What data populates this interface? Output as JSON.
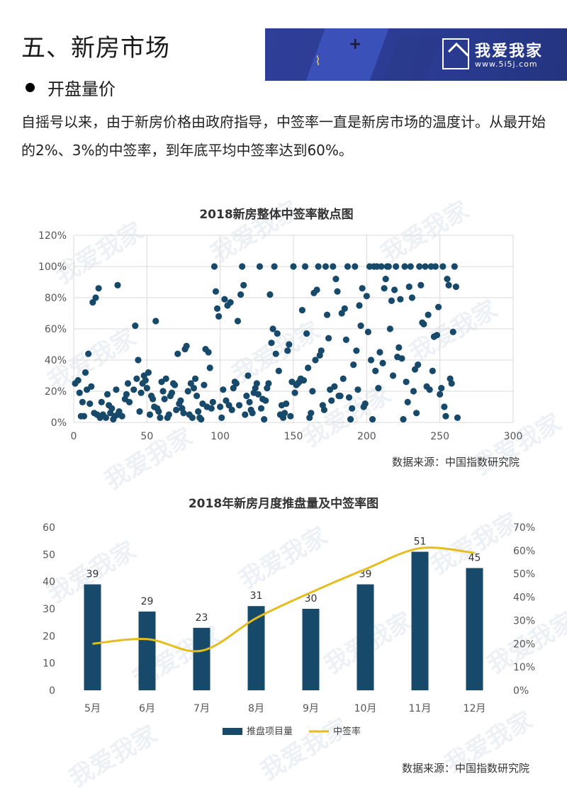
{
  "header": {
    "section_title": "五、新房市场",
    "bullet_title": "开盘量价",
    "paragraph": "自摇号以来，由于新房价格由政府指导，中签率一直是新房市场的温度计。从最开始的2%、3%的中签率，到年底平均中签率达到60%。"
  },
  "banner": {
    "brand": "我爱我家",
    "url": "www.5i5j.com",
    "colors": {
      "bg": "#2f3f99",
      "accent": "#e6c84a"
    }
  },
  "watermark_text": "我爱我家",
  "chart_data": [
    {
      "type": "scatter",
      "title": "2018新房整体中签率散点图",
      "xlim": [
        0,
        300
      ],
      "ylim": [
        0,
        120
      ],
      "xticks": [
        0,
        50,
        100,
        150,
        200,
        250,
        300
      ],
      "yticks": [
        "0%",
        "20%",
        "40%",
        "60%",
        "80%",
        "100%",
        "120%"
      ],
      "grid": true,
      "point_color": "#17496a",
      "points": [
        [
          1,
          25
        ],
        [
          3,
          27
        ],
        [
          4,
          19
        ],
        [
          5,
          4
        ],
        [
          6,
          13
        ],
        [
          7,
          4
        ],
        [
          8,
          32
        ],
        [
          9,
          21
        ],
        [
          10,
          44
        ],
        [
          11,
          12
        ],
        [
          12,
          23
        ],
        [
          13,
          77
        ],
        [
          14,
          6
        ],
        [
          15,
          80
        ],
        [
          16,
          5
        ],
        [
          17,
          86
        ],
        [
          18,
          3
        ],
        [
          19,
          13
        ],
        [
          20,
          5
        ],
        [
          22,
          3
        ],
        [
          23,
          18
        ],
        [
          24,
          11
        ],
        [
          25,
          6
        ],
        [
          26,
          9
        ],
        [
          27,
          2
        ],
        [
          28,
          4
        ],
        [
          29,
          21
        ],
        [
          30,
          5
        ],
        [
          31,
          7
        ],
        [
          33,
          4
        ],
        [
          35,
          15
        ],
        [
          36,
          18
        ],
        [
          37,
          25
        ],
        [
          38,
          13
        ],
        [
          30,
          88
        ],
        [
          41,
          21
        ],
        [
          42,
          62
        ],
        [
          43,
          28
        ],
        [
          44,
          40
        ],
        [
          45,
          7
        ],
        [
          46,
          19
        ],
        [
          47,
          25
        ],
        [
          48,
          30
        ],
        [
          49,
          27
        ],
        [
          50,
          22
        ],
        [
          51,
          32
        ],
        [
          52,
          5
        ],
        [
          53,
          17
        ],
        [
          54,
          15
        ],
        [
          55,
          10
        ],
        [
          56,
          65
        ],
        [
          57,
          9
        ],
        [
          58,
          7
        ],
        [
          59,
          3
        ],
        [
          60,
          26
        ],
        [
          61,
          20
        ],
        [
          62,
          15
        ],
        [
          63,
          28
        ],
        [
          64,
          3
        ],
        [
          65,
          5
        ],
        [
          66,
          17
        ],
        [
          67,
          19
        ],
        [
          68,
          25
        ],
        [
          69,
          24
        ],
        [
          70,
          8
        ],
        [
          71,
          44
        ],
        [
          72,
          12
        ],
        [
          73,
          14
        ],
        [
          74,
          9
        ],
        [
          75,
          6
        ],
        [
          76,
          47
        ],
        [
          77,
          49
        ],
        [
          78,
          20
        ],
        [
          79,
          5
        ],
        [
          80,
          25
        ],
        [
          81,
          3
        ],
        [
          82,
          22
        ],
        [
          83,
          28
        ],
        [
          84,
          17
        ],
        [
          85,
          7
        ],
        [
          86,
          3
        ],
        [
          87,
          2
        ],
        [
          88,
          12
        ],
        [
          89,
          24
        ],
        [
          90,
          47
        ],
        [
          91,
          10
        ],
        [
          92,
          45
        ],
        [
          93,
          35
        ],
        [
          94,
          9
        ],
        [
          95,
          13
        ],
        [
          96,
          100
        ],
        [
          97,
          84
        ],
        [
          98,
          73
        ],
        [
          99,
          68
        ],
        [
          100,
          10
        ],
        [
          101,
          3
        ],
        [
          102,
          21
        ],
        [
          103,
          79
        ],
        [
          104,
          14
        ],
        [
          105,
          75
        ],
        [
          106,
          11
        ],
        [
          107,
          77
        ],
        [
          108,
          8
        ],
        [
          109,
          22
        ],
        [
          110,
          26
        ],
        [
          111,
          25
        ],
        [
          112,
          65
        ],
        [
          113,
          11
        ],
        [
          114,
          82
        ],
        [
          115,
          100
        ],
        [
          116,
          88
        ],
        [
          117,
          5
        ],
        [
          118,
          17
        ],
        [
          119,
          30
        ],
        [
          120,
          13
        ],
        [
          121,
          8
        ],
        [
          122,
          6
        ],
        [
          123,
          19
        ],
        [
          124,
          22
        ],
        [
          125,
          25
        ],
        [
          126,
          18
        ],
        [
          127,
          100
        ],
        [
          128,
          9
        ],
        [
          129,
          15
        ],
        [
          130,
          2
        ],
        [
          131,
          14
        ],
        [
          132,
          22
        ],
        [
          133,
          25
        ],
        [
          134,
          82
        ],
        [
          135,
          51
        ],
        [
          136,
          60
        ],
        [
          137,
          100
        ],
        [
          138,
          44
        ],
        [
          139,
          57
        ],
        [
          140,
          33
        ],
        [
          141,
          5
        ],
        [
          142,
          11
        ],
        [
          143,
          3
        ],
        [
          144,
          6
        ],
        [
          145,
          12
        ],
        [
          146,
          46
        ],
        [
          147,
          50
        ],
        [
          148,
          4
        ],
        [
          149,
          26
        ],
        [
          150,
          100
        ],
        [
          151,
          19
        ],
        [
          152,
          24
        ],
        [
          153,
          25
        ],
        [
          154,
          26
        ],
        [
          155,
          28
        ],
        [
          156,
          72
        ],
        [
          157,
          27
        ],
        [
          158,
          100
        ],
        [
          159,
          57
        ],
        [
          160,
          35
        ],
        [
          161,
          3
        ],
        [
          162,
          6
        ],
        [
          163,
          20
        ],
        [
          164,
          83
        ],
        [
          165,
          40
        ],
        [
          166,
          85
        ],
        [
          167,
          100
        ],
        [
          168,
          43
        ],
        [
          169,
          46
        ],
        [
          170,
          11
        ],
        [
          171,
          8
        ],
        [
          172,
          100
        ],
        [
          173,
          69
        ],
        [
          174,
          54
        ],
        [
          175,
          21
        ],
        [
          176,
          14
        ],
        [
          177,
          100
        ],
        [
          178,
          23
        ],
        [
          179,
          92
        ],
        [
          180,
          84
        ],
        [
          181,
          17
        ],
        [
          182,
          17
        ],
        [
          183,
          70
        ],
        [
          184,
          28
        ],
        [
          185,
          73
        ],
        [
          186,
          53
        ],
        [
          187,
          100
        ],
        [
          188,
          16
        ],
        [
          189,
          2
        ],
        [
          190,
          9
        ],
        [
          191,
          37
        ],
        [
          192,
          100
        ],
        [
          193,
          46
        ],
        [
          194,
          21
        ],
        [
          195,
          75
        ],
        [
          196,
          62
        ],
        [
          197,
          86
        ],
        [
          198,
          10
        ],
        [
          199,
          12
        ],
        [
          200,
          81
        ],
        [
          201,
          58
        ],
        [
          202,
          100
        ],
        [
          203,
          40
        ],
        [
          204,
          2
        ],
        [
          205,
          100
        ],
        [
          206,
          33
        ],
        [
          207,
          100
        ],
        [
          208,
          22
        ],
        [
          209,
          45
        ],
        [
          210,
          100
        ],
        [
          211,
          38
        ],
        [
          212,
          86
        ],
        [
          213,
          92
        ],
        [
          214,
          100
        ],
        [
          215,
          100
        ],
        [
          216,
          60
        ],
        [
          217,
          78
        ],
        [
          218,
          30
        ],
        [
          219,
          85
        ],
        [
          220,
          100
        ],
        [
          221,
          42
        ],
        [
          222,
          48
        ],
        [
          223,
          79
        ],
        [
          224,
          41
        ],
        [
          225,
          2
        ],
        [
          226,
          100
        ],
        [
          227,
          26
        ],
        [
          228,
          13
        ],
        [
          229,
          87
        ],
        [
          230,
          100
        ],
        [
          231,
          80
        ],
        [
          232,
          20
        ],
        [
          233,
          34
        ],
        [
          234,
          6
        ],
        [
          235,
          37
        ],
        [
          236,
          100
        ],
        [
          237,
          88
        ],
        [
          238,
          64
        ],
        [
          239,
          63
        ],
        [
          240,
          100
        ],
        [
          241,
          23
        ],
        [
          242,
          69
        ],
        [
          243,
          21
        ],
        [
          244,
          100
        ],
        [
          245,
          33
        ],
        [
          246,
          55
        ],
        [
          247,
          100
        ],
        [
          248,
          56
        ],
        [
          249,
          74
        ],
        [
          250,
          18
        ],
        [
          251,
          22
        ],
        [
          252,
          100
        ],
        [
          253,
          10
        ],
        [
          254,
          4
        ],
        [
          255,
          92
        ],
        [
          256,
          88
        ],
        [
          257,
          28
        ],
        [
          258,
          25
        ],
        [
          259,
          58
        ],
        [
          260,
          100
        ],
        [
          261,
          87
        ],
        [
          262,
          3
        ]
      ]
    },
    {
      "type": "bar",
      "title": "2018年新房月度推盘量及中签率图",
      "categories": [
        "5月",
        "6月",
        "7月",
        "8月",
        "9月",
        "10月",
        "11月",
        "12月"
      ],
      "series": [
        {
          "name": "推盘项目量",
          "type": "bar",
          "axis": "left",
          "values": [
            39,
            29,
            23,
            31,
            30,
            39,
            51,
            45
          ],
          "color": "#17496a"
        },
        {
          "name": "中签率",
          "type": "line",
          "axis": "right",
          "values": [
            20,
            22,
            17,
            31,
            42,
            52,
            61,
            59
          ],
          "color": "#e6bd1e"
        }
      ],
      "ylim_left": [
        0,
        60
      ],
      "yticks_left": [
        "0",
        "10",
        "20",
        "30",
        "40",
        "50",
        "60"
      ],
      "ylim_right": [
        0,
        70
      ],
      "yticks_right": [
        "0%",
        "10%",
        "20%",
        "30%",
        "40%",
        "50%",
        "60%",
        "70%"
      ],
      "data_labels": [
        "39",
        "29",
        "23",
        "31",
        "30",
        "39",
        "51",
        "45"
      ],
      "legend_position": "bottom"
    }
  ],
  "sources": {
    "chart1": "数据来源：中国指数研究院",
    "chart2": "数据来源：中国指数研究院"
  }
}
